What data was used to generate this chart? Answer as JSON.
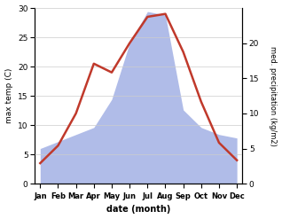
{
  "months": [
    "Jan",
    "Feb",
    "Mar",
    "Apr",
    "May",
    "Jun",
    "Jul",
    "Aug",
    "Sep",
    "Oct",
    "Nov",
    "Dec"
  ],
  "month_positions": [
    0,
    1,
    2,
    3,
    4,
    5,
    6,
    7,
    8,
    9,
    10,
    11
  ],
  "temperature": [
    3.5,
    6.5,
    12.0,
    20.5,
    19.0,
    24.0,
    28.5,
    29.0,
    22.5,
    14.0,
    7.0,
    4.0
  ],
  "precipitation": [
    5.0,
    6.0,
    7.0,
    8.0,
    12.0,
    20.0,
    24.5,
    24.0,
    10.5,
    8.0,
    7.0,
    6.5
  ],
  "temp_color": "#c0392b",
  "precip_color": "#b0bce8",
  "temp_ylim": [
    0,
    30
  ],
  "precip_ylim": [
    0,
    25
  ],
  "right_yticks": [
    0,
    5,
    10,
    15,
    20
  ],
  "left_yticks": [
    0,
    5,
    10,
    15,
    20,
    25,
    30
  ],
  "xlabel": "date (month)",
  "ylabel_left": "max temp (C)",
  "ylabel_right": "med. precipitation (kg/m2)",
  "figsize": [
    3.18,
    2.47
  ],
  "dpi": 100
}
